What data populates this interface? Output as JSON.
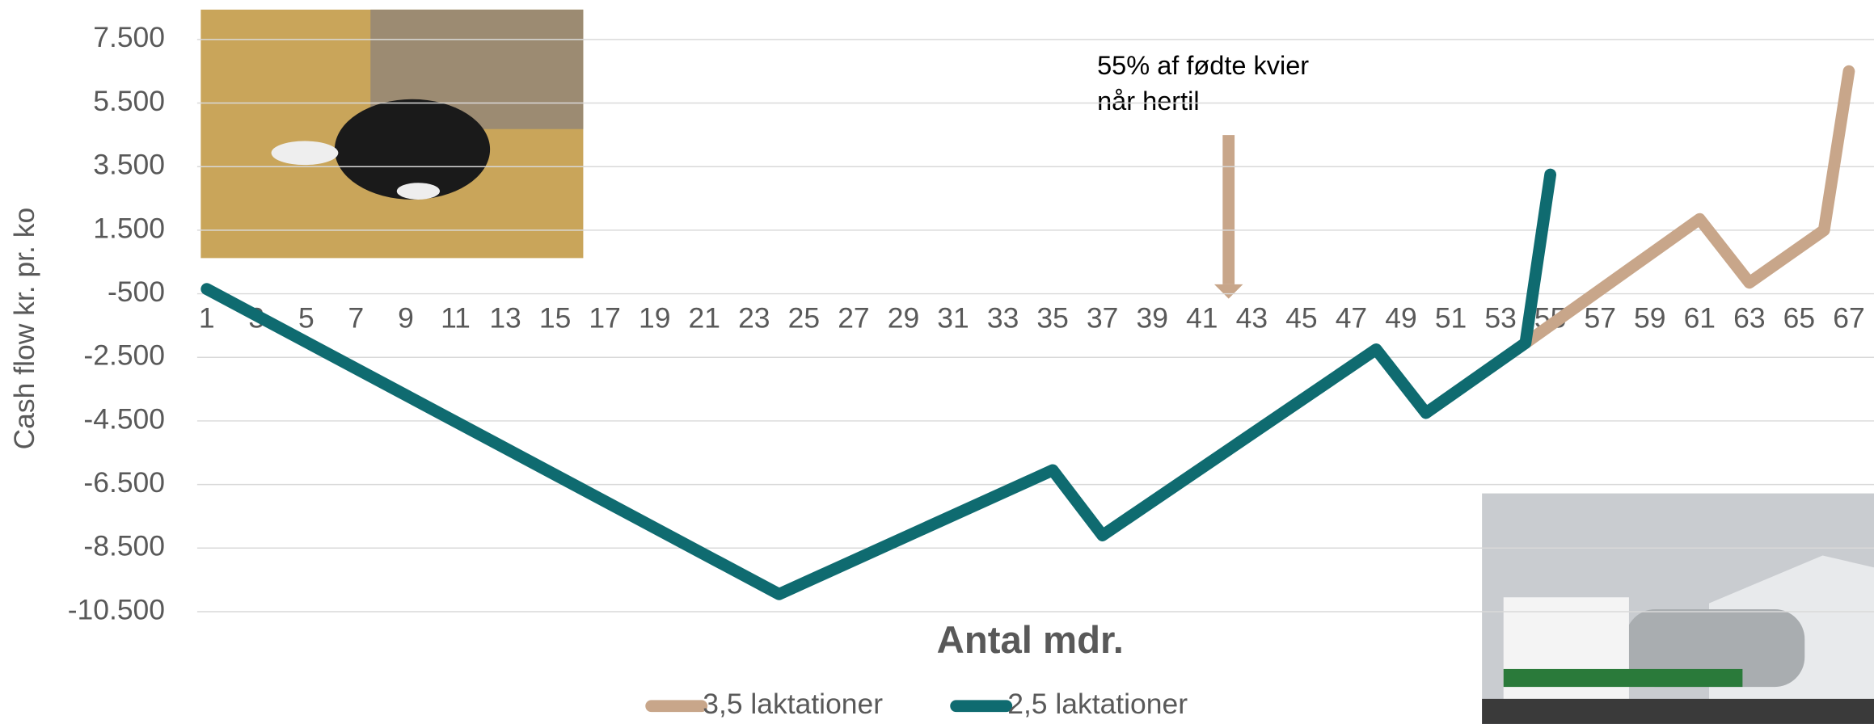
{
  "chart_data": {
    "type": "line",
    "annotation": [
      "55% af fødte kvier",
      "når hertil"
    ],
    "y_label": "Cash flow kr. pr. ko",
    "x_label": "Antal mdr.",
    "xlim": [
      1,
      67
    ],
    "xticks": [
      1,
      3,
      5,
      7,
      9,
      11,
      13,
      15,
      17,
      19,
      21,
      23,
      25,
      27,
      29,
      31,
      33,
      35,
      37,
      39,
      41,
      43,
      45,
      47,
      49,
      51,
      53,
      55,
      57,
      59,
      61,
      63,
      65,
      67
    ],
    "ylim": [
      -10500,
      7500
    ],
    "yticks": [
      {
        "value": -10500,
        "label": "-10.500"
      },
      {
        "value": -8500,
        "label": "-8.500"
      },
      {
        "value": -6500,
        "label": "-6.500"
      },
      {
        "value": -4500,
        "label": "-4.500"
      },
      {
        "value": -2500,
        "label": "-2.500"
      },
      -500,
      {
        "value": 1500,
        "label": "1.500"
      },
      {
        "value": 3500,
        "label": "3.500"
      },
      {
        "value": 5500,
        "label": "5.500"
      },
      {
        "value": 7500,
        "label": "7.500"
      }
    ],
    "grid": true,
    "series": [
      {
        "name": "3,5 laktationer",
        "color": "#c8a68a",
        "x": [
          54,
          61,
          63,
          66,
          67
        ],
        "values": [
          -2050,
          1850,
          -150,
          1500,
          6500
        ]
      },
      {
        "name": "2,5 laktationer",
        "color": "#0f6b70",
        "x": [
          1,
          24,
          35,
          37,
          48,
          50,
          54,
          55
        ],
        "values": [
          -350,
          -9950,
          -6050,
          -8100,
          -2250,
          -4250,
          -2050,
          3250
        ]
      }
    ]
  }
}
